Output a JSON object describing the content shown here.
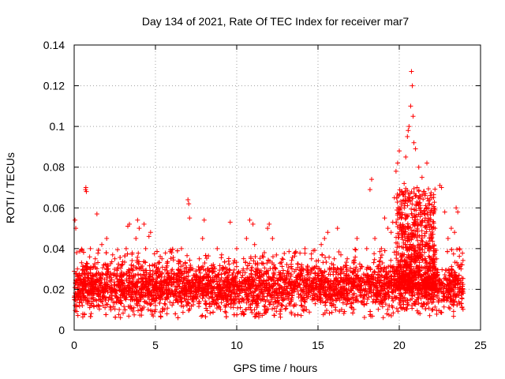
{
  "chart_data": {
    "type": "scatter",
    "title": "Day 134 of 2021, Rate Of TEC Index for receiver mar7",
    "xlabel": "GPS time / hours",
    "ylabel": "ROTI / TECUs",
    "xlim": [
      0,
      25
    ],
    "ylim": [
      0,
      0.14
    ],
    "xticks": [
      0,
      5,
      10,
      15,
      20,
      25
    ],
    "xtick_labels": [
      "0",
      "5",
      "10",
      "15",
      "20",
      "25"
    ],
    "yticks": [
      0,
      0.02,
      0.04,
      0.06,
      0.08,
      0.1,
      0.12,
      0.14
    ],
    "ytick_labels": [
      "0",
      "0.02",
      "0.04",
      "0.06",
      "0.08",
      "0.1",
      "0.12",
      "0.14"
    ],
    "grid": true,
    "marker": "+",
    "color": "#ff0000",
    "series": [
      {
        "name": "ROTI",
        "points": [
          [
            0.05,
            0.054
          ],
          [
            0.1,
            0.05
          ],
          [
            0.15,
            0.038
          ],
          [
            0.2,
            0.03
          ],
          [
            0.3,
            0.022
          ],
          [
            0.4,
            0.015
          ],
          [
            0.5,
            0.012
          ],
          [
            0.6,
            0.028
          ],
          [
            0.7,
            0.069
          ],
          [
            0.72,
            0.07
          ],
          [
            0.75,
            0.068
          ],
          [
            0.8,
            0.03
          ],
          [
            0.9,
            0.018
          ],
          [
            1.0,
            0.04
          ],
          [
            1.1,
            0.025
          ],
          [
            1.2,
            0.012
          ],
          [
            1.3,
            0.035
          ],
          [
            1.4,
            0.057
          ],
          [
            1.5,
            0.028
          ],
          [
            1.6,
            0.015
          ],
          [
            1.7,
            0.042
          ],
          [
            1.8,
            0.02
          ],
          [
            1.9,
            0.011
          ],
          [
            2.0,
            0.045
          ],
          [
            2.1,
            0.03
          ],
          [
            2.2,
            0.016
          ],
          [
            2.3,
            0.022
          ],
          [
            2.5,
            0.035
          ],
          [
            2.6,
            0.014
          ],
          [
            2.8,
            0.025
          ],
          [
            3.0,
            0.018
          ],
          [
            3.2,
            0.04
          ],
          [
            3.3,
            0.051
          ],
          [
            3.4,
            0.052
          ],
          [
            3.5,
            0.03
          ],
          [
            3.6,
            0.015
          ],
          [
            3.8,
            0.045
          ],
          [
            3.9,
            0.054
          ],
          [
            4.0,
            0.05
          ],
          [
            4.1,
            0.03
          ],
          [
            4.2,
            0.022
          ],
          [
            4.3,
            0.052
          ],
          [
            4.4,
            0.04
          ],
          [
            4.5,
            0.018
          ],
          [
            4.6,
            0.046
          ],
          [
            4.7,
            0.048
          ],
          [
            4.8,
            0.025
          ],
          [
            5.0,
            0.012
          ],
          [
            5.2,
            0.02
          ],
          [
            5.4,
            0.035
          ],
          [
            5.6,
            0.015
          ],
          [
            5.8,
            0.022
          ],
          [
            6.0,
            0.038
          ],
          [
            6.2,
            0.018
          ],
          [
            6.4,
            0.028
          ],
          [
            6.6,
            0.04
          ],
          [
            6.8,
            0.03
          ],
          [
            7.0,
            0.064
          ],
          [
            7.05,
            0.062
          ],
          [
            7.1,
            0.055
          ],
          [
            7.3,
            0.03
          ],
          [
            7.5,
            0.02
          ],
          [
            7.7,
            0.035
          ],
          [
            7.9,
            0.045
          ],
          [
            8.0,
            0.054
          ],
          [
            8.2,
            0.03
          ],
          [
            8.4,
            0.018
          ],
          [
            8.6,
            0.025
          ],
          [
            8.8,
            0.04
          ],
          [
            9.0,
            0.02
          ],
          [
            9.2,
            0.015
          ],
          [
            9.4,
            0.03
          ],
          [
            9.6,
            0.053
          ],
          [
            9.8,
            0.025
          ],
          [
            10.0,
            0.04
          ],
          [
            10.2,
            0.018
          ],
          [
            10.4,
            0.03
          ],
          [
            10.6,
            0.045
          ],
          [
            10.8,
            0.054
          ],
          [
            11.0,
            0.052
          ],
          [
            11.1,
            0.042
          ],
          [
            11.3,
            0.03
          ],
          [
            11.5,
            0.02
          ],
          [
            11.7,
            0.038
          ],
          [
            11.9,
            0.05
          ],
          [
            12.0,
            0.052
          ],
          [
            12.2,
            0.045
          ],
          [
            12.4,
            0.03
          ],
          [
            12.6,
            0.02
          ],
          [
            12.8,
            0.035
          ],
          [
            13.0,
            0.025
          ],
          [
            13.2,
            0.018
          ],
          [
            13.4,
            0.03
          ],
          [
            13.6,
            0.038
          ],
          [
            13.8,
            0.022
          ],
          [
            14.0,
            0.03
          ],
          [
            14.2,
            0.04
          ],
          [
            14.4,
            0.025
          ],
          [
            14.6,
            0.035
          ],
          [
            14.8,
            0.02
          ],
          [
            15.0,
            0.03
          ],
          [
            15.2,
            0.042
          ],
          [
            15.4,
            0.045
          ],
          [
            15.6,
            0.048
          ],
          [
            15.8,
            0.03
          ],
          [
            16.0,
            0.035
          ],
          [
            16.2,
            0.05
          ],
          [
            16.4,
            0.03
          ],
          [
            16.6,
            0.02
          ],
          [
            16.8,
            0.035
          ],
          [
            17.0,
            0.025
          ],
          [
            17.2,
            0.03
          ],
          [
            17.4,
            0.045
          ],
          [
            17.6,
            0.03
          ],
          [
            17.8,
            0.02
          ],
          [
            18.0,
            0.04
          ],
          [
            18.2,
            0.069
          ],
          [
            18.3,
            0.074
          ],
          [
            18.5,
            0.045
          ],
          [
            18.7,
            0.03
          ],
          [
            18.9,
            0.04
          ],
          [
            19.1,
            0.055
          ],
          [
            19.3,
            0.05
          ],
          [
            19.5,
            0.048
          ],
          [
            19.6,
            0.053
          ],
          [
            19.7,
            0.065
          ],
          [
            19.8,
            0.078
          ],
          [
            19.9,
            0.082
          ],
          [
            20.0,
            0.088
          ],
          [
            20.1,
            0.06
          ],
          [
            20.2,
            0.05
          ],
          [
            20.3,
            0.072
          ],
          [
            20.4,
            0.085
          ],
          [
            20.5,
            0.095
          ],
          [
            20.55,
            0.098
          ],
          [
            20.6,
            0.1
          ],
          [
            20.7,
            0.11
          ],
          [
            20.75,
            0.127
          ],
          [
            20.8,
            0.12
          ],
          [
            20.85,
            0.105
          ],
          [
            20.9,
            0.092
          ],
          [
            21.0,
            0.089
          ],
          [
            21.1,
            0.07
          ],
          [
            21.2,
            0.08
          ],
          [
            21.3,
            0.06
          ],
          [
            21.4,
            0.075
          ],
          [
            21.5,
            0.068
          ],
          [
            21.6,
            0.055
          ],
          [
            21.7,
            0.082
          ],
          [
            21.8,
            0.062
          ],
          [
            21.9,
            0.058
          ],
          [
            22.0,
            0.045
          ],
          [
            22.1,
            0.04
          ],
          [
            22.2,
            0.05
          ],
          [
            22.3,
            0.035
          ],
          [
            22.5,
            0.071
          ],
          [
            22.6,
            0.07
          ],
          [
            22.8,
            0.058
          ],
          [
            23.0,
            0.045
          ],
          [
            23.2,
            0.05
          ],
          [
            23.4,
            0.048
          ],
          [
            23.5,
            0.06
          ],
          [
            23.6,
            0.058
          ],
          [
            23.7,
            0.04
          ],
          [
            23.8,
            0.03
          ],
          [
            23.9,
            0.02
          ]
        ],
        "band": {
          "x_range": [
            0,
            23.95
          ],
          "typical_range": [
            0.006,
            0.034
          ],
          "median": 0.018,
          "enhanced_x_range": [
            19.8,
            22.2
          ],
          "enhanced_range": [
            0.02,
            0.07
          ]
        }
      }
    ]
  }
}
